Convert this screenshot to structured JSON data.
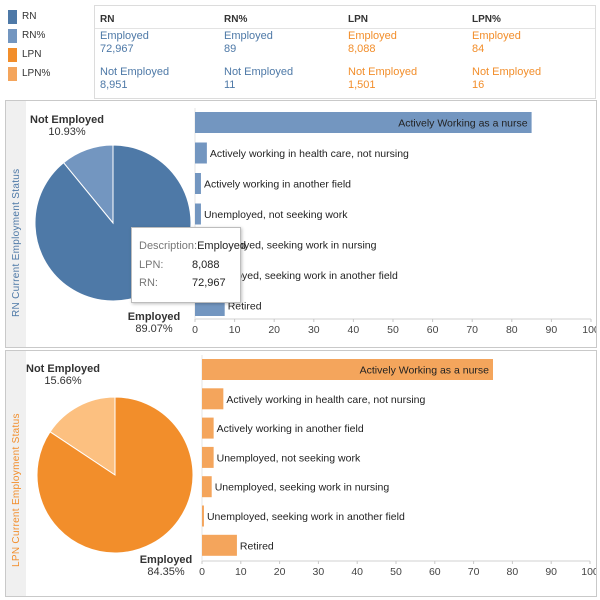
{
  "legend": [
    {
      "label": "RN",
      "color": "#4e79a7"
    },
    {
      "label": "RN%",
      "color": "#7396c0"
    },
    {
      "label": "LPN",
      "color": "#f28e2b"
    },
    {
      "label": "LPN%",
      "color": "#f4a55c"
    }
  ],
  "kpi": {
    "headers": [
      "RN",
      "RN%",
      "LPN",
      "LPN%"
    ],
    "employed_label": "Employed",
    "not_employed_label": "Not Employed",
    "employed_values": [
      "72,967",
      "89",
      "8,088",
      "84"
    ],
    "not_employed_values": [
      "8,951",
      "11",
      "1,501",
      "16"
    ],
    "colors": [
      "#4e79a7",
      "#4e79a7",
      "#f28e2b",
      "#f28e2b"
    ]
  },
  "tooltip": {
    "description_key": "Description:",
    "description_value": "Employed",
    "lpn_key": "LPN:",
    "lpn_value": "8,088",
    "rn_key": "RN:",
    "rn_value": "72,967"
  },
  "chart_data": [
    {
      "type": "pie",
      "title": "RN Current Employment Status",
      "slices": [
        {
          "label": "Employed",
          "value": 89.07,
          "display": "89.07%",
          "color": "#4e79a7"
        },
        {
          "label": "Not Employed",
          "value": 10.93,
          "display": "10.93%",
          "color": "#7396c0"
        }
      ]
    },
    {
      "type": "bar",
      "orientation": "horizontal",
      "categories": [
        "Actively Working as a nurse",
        "Actively working in health care, not nursing",
        "Actively working in another field",
        "Unemployed, not seeking work",
        "Unemployed, seeking work in nursing",
        "Unemployed, seeking work in another field",
        "Retired"
      ],
      "values": [
        85,
        3,
        1.5,
        1.5,
        1,
        0.5,
        7.5
      ],
      "xlim": [
        0,
        100
      ],
      "xticks": [
        0,
        10,
        20,
        30,
        40,
        50,
        60,
        70,
        80,
        90,
        100
      ],
      "color": "#7396c0"
    },
    {
      "type": "pie",
      "title": "LPN Current Employment Status",
      "slices": [
        {
          "label": "Employed",
          "value": 84.35,
          "display": "84.35%",
          "color": "#f28e2b"
        },
        {
          "label": "Not Employed",
          "value": 15.66,
          "display": "15.66%",
          "color": "#fcc080"
        }
      ]
    },
    {
      "type": "bar",
      "orientation": "horizontal",
      "categories": [
        "Actively Working as a nurse",
        "Actively working in health care, not nursing",
        "Actively working in another field",
        "Unemployed, not seeking work",
        "Unemployed, seeking work in nursing",
        "Unemployed, seeking work in another field",
        "Retired"
      ],
      "values": [
        75,
        5.5,
        3,
        3,
        2.5,
        0.5,
        9
      ],
      "xlim": [
        0,
        100
      ],
      "xticks": [
        0,
        10,
        20,
        30,
        40,
        50,
        60,
        70,
        80,
        90,
        100
      ],
      "color": "#f4a55c"
    }
  ]
}
